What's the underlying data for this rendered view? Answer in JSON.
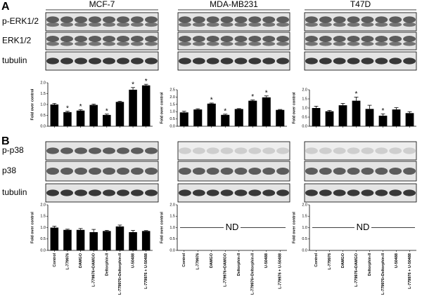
{
  "panels": [
    {
      "label": "A",
      "columns": [
        "MCF-7",
        "MDA-MB231",
        "T47D"
      ],
      "blots": [
        "p-ERK1/2",
        "ERK1/2",
        "tubulin"
      ]
    },
    {
      "label": "B",
      "blots": [
        "p-p38",
        "p38",
        "tubulin"
      ]
    }
  ],
  "chart_data": [
    {
      "type": "bar",
      "ylabel": "Fold over control",
      "color": "#000000",
      "categories": [
        null,
        null,
        null,
        null,
        null,
        null,
        null,
        null
      ],
      "values": [
        1.0,
        0.65,
        0.72,
        0.98,
        0.52,
        1.12,
        1.68,
        1.88
      ],
      "errors": [
        0.05,
        0.04,
        0.04,
        0.04,
        0.04,
        0.03,
        0.1,
        0.05
      ],
      "markers": [
        null,
        "*",
        "*",
        null,
        "*",
        null,
        "*",
        "*"
      ],
      "ylim": [
        0,
        2.0
      ],
      "yticks": [
        {
          "value": 0,
          "label": "0.0"
        },
        {
          "value": 0.5,
          "label": "0.5"
        },
        {
          "value": 1,
          "label": "1.0"
        },
        {
          "value": 1.5,
          "label": "1.5"
        },
        {
          "value": 2,
          "label": "2.0"
        }
      ]
    },
    {
      "type": "bar",
      "ylabel": "Fold over control",
      "color": "#000000",
      "categories": [
        null,
        null,
        null,
        null,
        null,
        null,
        null,
        null
      ],
      "values": [
        0.95,
        1.15,
        1.55,
        0.78,
        1.18,
        1.75,
        1.98,
        1.12
      ],
      "errors": [
        0.08,
        0.05,
        0.04,
        0.05,
        0.03,
        0.05,
        0.1,
        0.03
      ],
      "markers": [
        null,
        null,
        "*",
        "*",
        null,
        "*",
        "*",
        null
      ],
      "ylim": [
        0,
        2.5
      ],
      "yticks": [
        {
          "value": 0,
          "label": "0.0"
        },
        {
          "value": 0.5,
          "label": "0.5"
        },
        {
          "value": 1,
          "label": "1.0"
        },
        {
          "value": 1.5,
          "label": "1.5"
        },
        {
          "value": 2,
          "label": "2.0"
        },
        {
          "value": 2.5,
          "label": "2.5"
        }
      ]
    },
    {
      "type": "bar",
      "ylabel": "Fold over control",
      "color": "#000000",
      "categories": [
        null,
        null,
        null,
        null,
        null,
        null,
        null,
        null
      ],
      "values": [
        1.0,
        0.82,
        1.15,
        1.4,
        0.95,
        0.58,
        0.92,
        0.72
      ],
      "errors": [
        0.1,
        0.05,
        0.1,
        0.2,
        0.2,
        0.1,
        0.1,
        0.08
      ],
      "markers": [
        null,
        null,
        null,
        "*",
        null,
        "*",
        null,
        null
      ],
      "ylim": [
        0,
        2.0
      ],
      "yticks": [
        {
          "value": 0,
          "label": "0.0"
        },
        {
          "value": 0.5,
          "label": "0.5"
        },
        {
          "value": 1,
          "label": "1.0"
        },
        {
          "value": 1.5,
          "label": "1.5"
        },
        {
          "value": 2,
          "label": "2.0"
        }
      ]
    },
    {
      "type": "bar",
      "ylabel": "Fold over control",
      "color": "#000000",
      "categories": [
        "Control",
        "L-779976",
        "DAMGO",
        "L-779976+DAMGO",
        "Deltorphin-II",
        "L-779976+Deltorphin-II",
        "U-50488",
        "L-779976 + U-50488"
      ],
      "values": [
        1.0,
        0.9,
        0.9,
        0.8,
        0.85,
        1.05,
        0.8,
        0.85
      ],
      "errors": [
        0.06,
        0.03,
        0.06,
        0.12,
        0.03,
        0.06,
        0.08,
        0.02
      ],
      "ylim": [
        0,
        2.0
      ],
      "yticks": [
        {
          "value": 0,
          "label": "0.0"
        },
        {
          "value": 0.5,
          "label": "0.5"
        },
        {
          "value": 1,
          "label": "1.0"
        },
        {
          "value": 1.5,
          "label": "1.5"
        },
        {
          "value": 2,
          "label": "2.0"
        }
      ]
    },
    {
      "type": "bar",
      "ylabel": "Fold over control",
      "annotation": "ND",
      "hline": 1,
      "categories": [
        "Control",
        "L-779976",
        "DAMGO",
        "L-779976+DAMGO",
        "Deltorphin-II",
        "L-779976+Deltorphin-II",
        "U-50488",
        "L-779976 + U-50488"
      ],
      "ylim": [
        0,
        2.0
      ],
      "yticks": [
        {
          "value": 0,
          "label": "0.0"
        },
        {
          "value": 0.5,
          "label": "0.5"
        },
        {
          "value": 1,
          "label": "1.0"
        },
        {
          "value": 1.5,
          "label": "1.5"
        },
        {
          "value": 2,
          "label": "2.0"
        }
      ]
    },
    {
      "type": "bar",
      "ylabel": "Fold over control",
      "annotation": "ND",
      "hline": 1,
      "categories": [
        "Control",
        "L-779976",
        "DAMGO",
        "L-779976+DAMGO",
        "Deltorphin-II",
        "L-779976+Deltorphin-II",
        "U-50488",
        "L-779976 + U-50488"
      ],
      "ylim": [
        0,
        2.0
      ],
      "yticks": [
        {
          "value": 0,
          "label": "0.0"
        },
        {
          "value": 0.5,
          "label": "0.5"
        },
        {
          "value": 1,
          "label": "1.0"
        },
        {
          "value": 1.5,
          "label": "1.5"
        },
        {
          "value": 2,
          "label": "2.0"
        }
      ]
    }
  ]
}
